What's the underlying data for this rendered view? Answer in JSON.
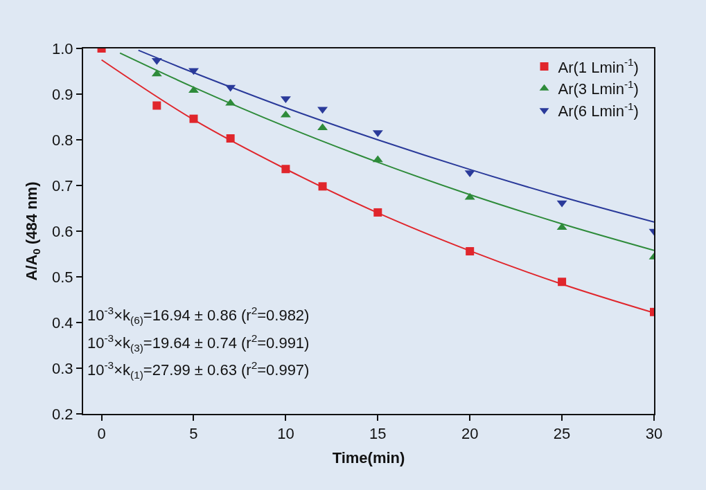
{
  "chart_data": {
    "type": "scatter",
    "xlabel": "Time(min)",
    "ylabel": "A/A$_{0}$ (484 nm)",
    "xlim": [
      -1,
      30
    ],
    "xticks": [
      0,
      5,
      10,
      15,
      20,
      25,
      30
    ],
    "ylim": [
      0.2,
      1.0
    ],
    "yticks": [
      {
        "value": 0.2,
        "label": "0.2"
      },
      {
        "value": 0.3,
        "label": "0.3"
      },
      {
        "value": 0.4,
        "label": "0.4"
      },
      {
        "value": 0.5,
        "label": "0.5"
      },
      {
        "value": 0.6,
        "label": "0.6"
      },
      {
        "value": 0.7,
        "label": "0.7"
      },
      {
        "value": 0.8,
        "label": "0.8"
      },
      {
        "value": 0.9,
        "label": "0.9"
      },
      {
        "value": 1.0,
        "label": "1.0"
      }
    ],
    "grid": false,
    "legend": "top right",
    "x": [
      0,
      3,
      5,
      7,
      10,
      12,
      15,
      20,
      25,
      30
    ],
    "series": [
      {
        "name": "Ar(1 Lmin$^{-1}$)",
        "marker": "square",
        "color": "#e0262c",
        "values": [
          1.0,
          0.875,
          0.846,
          0.803,
          0.736,
          0.698,
          0.641,
          0.556,
          0.489,
          0.423
        ]
      },
      {
        "name": "Ar(3 Lmin$^{-1}$)",
        "marker": "triangle",
        "color": "#2e8b3a",
        "values": [
          null,
          0.944,
          0.908,
          0.88,
          0.854,
          0.826,
          0.756,
          0.674,
          0.608,
          0.543
        ]
      },
      {
        "name": "Ar(6 Lmin$^{-1}$)",
        "marker": "triangle-down",
        "color": "#2a3a9a",
        "values": [
          null,
          0.974,
          0.952,
          0.915,
          0.89,
          0.867,
          0.816,
          0.728,
          0.662,
          0.6
        ]
      },
      {
        "type": "line",
        "marker": "none",
        "line_style": "solid",
        "color": "#e0262c",
        "x": [
          0,
          5,
          10,
          15,
          20,
          25,
          30
        ],
        "values": [
          0.975,
          0.844,
          0.736,
          0.64,
          0.557,
          0.484,
          0.421
        ]
      },
      {
        "type": "line",
        "marker": "none",
        "line_style": "solid",
        "color": "#2e8b3a",
        "x": [
          1,
          5,
          10,
          15,
          20,
          25,
          30
        ],
        "values": [
          0.99,
          0.915,
          0.829,
          0.751,
          0.68,
          0.616,
          0.558
        ]
      },
      {
        "type": "line",
        "marker": "none",
        "line_style": "solid",
        "color": "#2a3a9a",
        "x": [
          2,
          5,
          10,
          15,
          20,
          25,
          30
        ],
        "values": [
          0.996,
          0.947,
          0.87,
          0.8,
          0.735,
          0.675,
          0.62
        ]
      }
    ],
    "annotations": [
      "10$^{-3}$×k$_{(6)}$=16.94 ± 0.86 (r$^{2}$=0.982)",
      "10$^{-3}$×k$_{(3)}$=19.64 ± 0.74 (r$^{2}$=0.991)",
      "10$^{-3}$×k$_{(1)}$=27.99 ± 0.63 (r$^{2}$=0.997)"
    ]
  }
}
